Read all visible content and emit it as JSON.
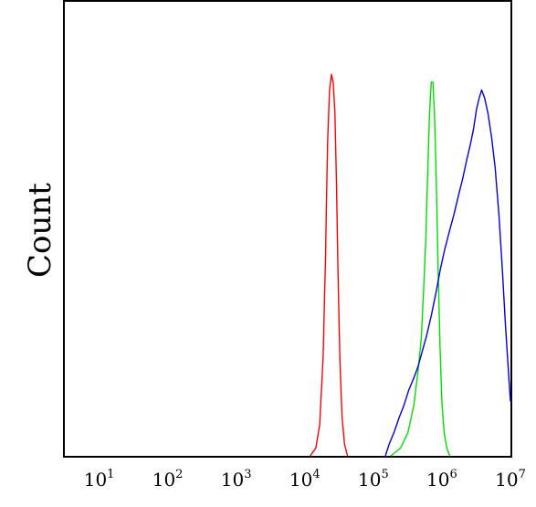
{
  "chart_data": {
    "type": "line",
    "title": "",
    "xlabel": "",
    "ylabel": "Count",
    "xscale": "log",
    "xlim": [
      3.16,
      10000000
    ],
    "ylim": [
      0,
      100
    ],
    "grid": false,
    "legend": "none",
    "x_ticks": [
      {
        "base": "10",
        "exp": "1",
        "value": 10
      },
      {
        "base": "10",
        "exp": "2",
        "value": 100
      },
      {
        "base": "10",
        "exp": "3",
        "value": 1000
      },
      {
        "base": "10",
        "exp": "4",
        "value": 10000
      },
      {
        "base": "10",
        "exp": "5",
        "value": 100000
      },
      {
        "base": "10",
        "exp": "6",
        "value": 1000000
      },
      {
        "base": "10",
        "exp": "7",
        "value": 10000000
      }
    ],
    "series": [
      {
        "color": "#ff0000",
        "x": [
          12000,
          14500,
          16500,
          18500,
          20000,
          21500,
          23000,
          24500,
          26000,
          27500,
          29000,
          30500,
          32500,
          35000,
          38000,
          42000
        ],
        "y": [
          0,
          2,
          8,
          25,
          50,
          80,
          94,
          98,
          96,
          88,
          70,
          48,
          25,
          10,
          3,
          0
        ]
      },
      {
        "color": "#00e000",
        "x": [
          180000,
          250000,
          320000,
          390000,
          450000,
          500000,
          540000,
          580000,
          620000,
          660000,
          700000,
          740000,
          780000,
          830000,
          880000,
          940000,
          1000000,
          1080000,
          1180000,
          1300000
        ],
        "y": [
          0,
          2,
          6,
          13,
          22,
          30,
          42,
          55,
          72,
          88,
          96,
          96,
          88,
          70,
          48,
          28,
          14,
          6,
          2,
          0
        ]
      },
      {
        "color": "#0000dd",
        "x": [
          150000,
          170000,
          200000,
          240000,
          280000,
          330000,
          390000,
          450000,
          520000,
          600000,
          700000,
          820000,
          950000,
          1100000,
          1300000,
          1500000,
          1750000,
          2000000,
          2300000,
          2600000,
          2900000,
          3200000,
          3500000,
          3800000,
          4200000,
          4700000,
          5300000,
          6000000,
          6800000,
          7600000,
          8500000,
          9500000,
          10000000
        ],
        "y": [
          0,
          3,
          6,
          10,
          13,
          17,
          20,
          23,
          27,
          31,
          36,
          42,
          48,
          53,
          58,
          62,
          67,
          71,
          76,
          80,
          84,
          89,
          92,
          94,
          92,
          88,
          82,
          74,
          62,
          48,
          33,
          20,
          14
        ]
      }
    ]
  }
}
